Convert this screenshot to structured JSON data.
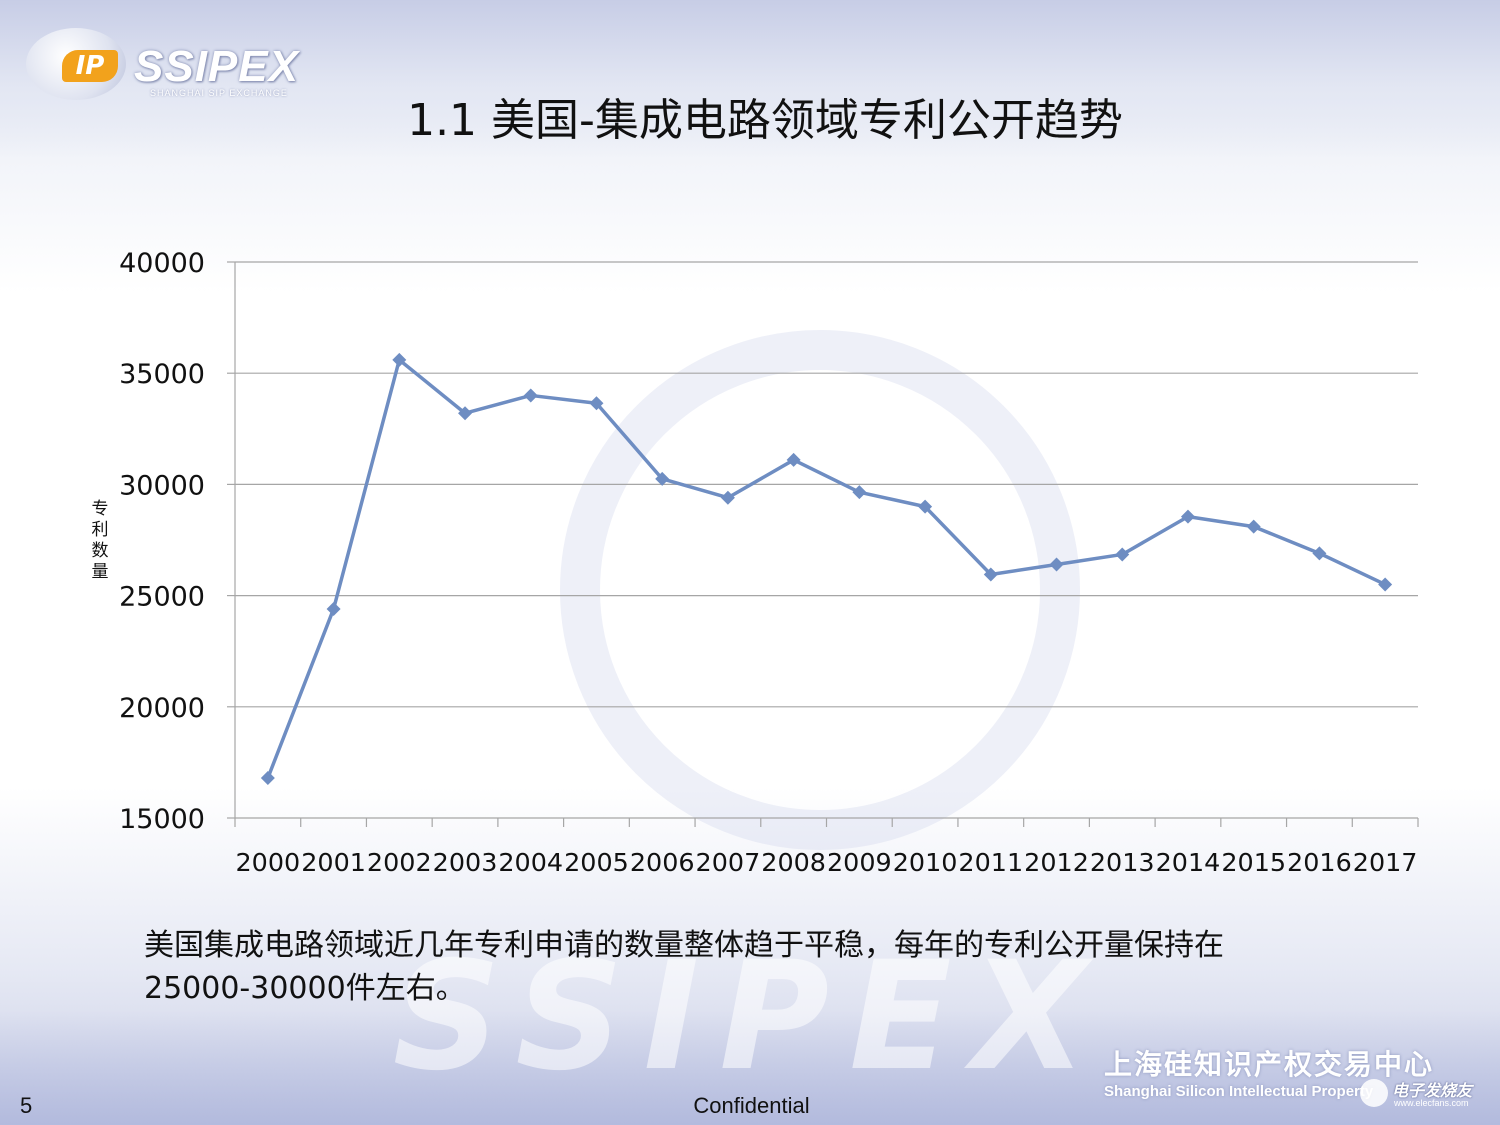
{
  "slide": {
    "title": "1.1  美国-集成电路领域专利公开趋势",
    "summary_line1": "美国集成电路领域近几年专利申请的数量整体趋于平稳，每年的专利公开量保持在",
    "summary_line2": "25000-30000件左右。",
    "page_number": "5",
    "footer": "Confidential"
  },
  "logo": {
    "badge": "IP",
    "name": "SSIPEX",
    "subtitle": "SHANGHAI SIP EXCHANGE"
  },
  "organization": {
    "name_cn": "上海硅知识产权交易中心",
    "name_en": "Shanghai Silicon Intellectual Property"
  },
  "watermark": {
    "text": "SSIPEX",
    "source_cn": "电子发烧友",
    "source_url": "www.elecfans.com"
  },
  "chart_data": {
    "type": "line",
    "ylabel": "专利数量",
    "xlabel": "",
    "ylim": [
      15000,
      40000
    ],
    "yticks": [
      15000,
      20000,
      25000,
      30000,
      35000,
      40000
    ],
    "grid": true,
    "categories": [
      "2000",
      "2001",
      "2002",
      "2003",
      "2004",
      "2005",
      "2006",
      "2007",
      "2008",
      "2009",
      "2010",
      "2011",
      "2012",
      "2013",
      "2014",
      "2015",
      "2016",
      "2017"
    ],
    "series": [
      {
        "values": [
          16800,
          24400,
          35600,
          33200,
          34000,
          33650,
          30250,
          29400,
          31100,
          29650,
          29000,
          25950,
          26400,
          26850,
          28550,
          28100,
          26900,
          25500
        ],
        "color": "#6e8dc2",
        "marker": "diamond"
      }
    ]
  }
}
